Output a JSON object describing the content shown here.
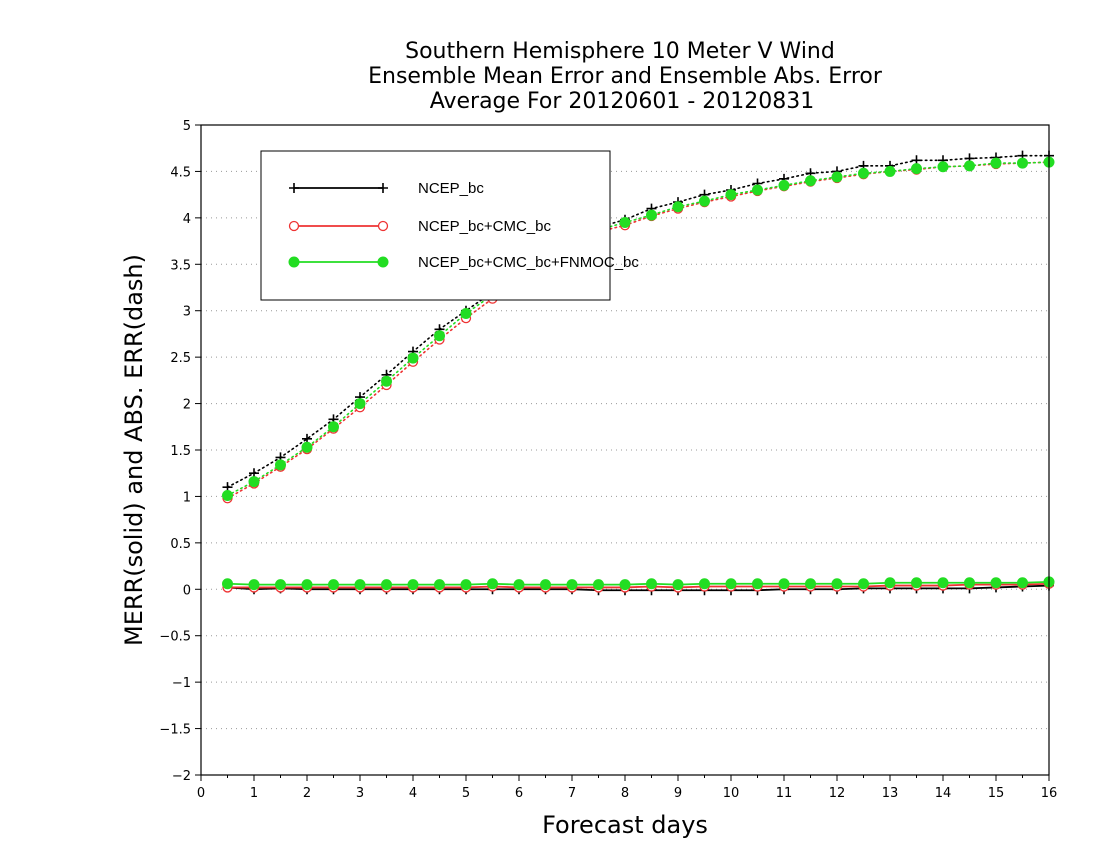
{
  "chart_data": {
    "type": "line",
    "title": "Southern Hemisphere 10 Meter V Wind",
    "subtitle": "Ensemble Mean Error and Ensemble Abs. Error",
    "subtitle2": "Average For 20120601 - 20120831",
    "xlabel": "Forecast days",
    "ylabel": "MERR(solid) and ABS. ERR(dash)",
    "xlim": [
      0,
      16
    ],
    "ylim": [
      -2,
      5
    ],
    "xticks": [
      "0",
      "1",
      "2",
      "3",
      "4",
      "5",
      "6",
      "7",
      "8",
      "9",
      "10",
      "11",
      "12",
      "13",
      "14",
      "15",
      "16"
    ],
    "yticks": [
      "−2",
      "−1.5",
      "−1",
      "−0.5",
      "0",
      "0.5",
      "1",
      "1.5",
      "2",
      "2.5",
      "3",
      "3.5",
      "4",
      "4.5",
      "5"
    ],
    "ytick_values": [
      -2,
      -1.5,
      -1,
      -0.5,
      0,
      0.5,
      1,
      1.5,
      2,
      2.5,
      3,
      3.5,
      4,
      4.5,
      5
    ],
    "grid": "horizontal-dotted",
    "legend_position": "top-left",
    "x": [
      0.5,
      1,
      1.5,
      2,
      2.5,
      3,
      3.5,
      4,
      4.5,
      5,
      5.5,
      6,
      6.5,
      7,
      7.5,
      8,
      8.5,
      9,
      9.5,
      10,
      10.5,
      11,
      11.5,
      12,
      12.5,
      13,
      13.5,
      14,
      14.5,
      15,
      15.5,
      16
    ],
    "series": [
      {
        "name": "NCEP_bc",
        "color": "#000000",
        "marker": "plus",
        "abs_err": [
          1.1,
          1.25,
          1.42,
          1.62,
          1.83,
          2.07,
          2.31,
          2.56,
          2.8,
          3.0,
          3.2,
          3.4,
          3.6,
          3.78,
          3.9,
          3.98,
          4.1,
          4.17,
          4.25,
          4.3,
          4.37,
          4.42,
          4.48,
          4.5,
          4.56,
          4.56,
          4.62,
          4.62,
          4.64,
          4.65,
          4.67,
          4.67
        ],
        "mean_err": [
          0.02,
          0.0,
          0.01,
          0.0,
          0.0,
          0.0,
          0.0,
          0.0,
          0.0,
          0.0,
          0.0,
          0.0,
          0.0,
          0.0,
          -0.01,
          -0.01,
          -0.01,
          -0.01,
          -0.01,
          -0.01,
          -0.01,
          0.0,
          0.0,
          0.0,
          0.01,
          0.01,
          0.01,
          0.01,
          0.01,
          0.02,
          0.03,
          0.04
        ]
      },
      {
        "name": "NCEP_bc+CMC_bc",
        "color": "#ee3333",
        "marker": "open-circle",
        "abs_err": [
          0.98,
          1.14,
          1.32,
          1.51,
          1.73,
          1.96,
          2.2,
          2.45,
          2.69,
          2.92,
          3.13,
          3.33,
          3.53,
          3.7,
          3.85,
          3.92,
          4.02,
          4.1,
          4.17,
          4.23,
          4.29,
          4.34,
          4.39,
          4.43,
          4.47,
          4.5,
          4.52,
          4.55,
          4.56,
          4.58,
          4.59,
          4.6
        ],
        "mean_err": [
          0.02,
          0.02,
          0.02,
          0.02,
          0.02,
          0.02,
          0.02,
          0.02,
          0.02,
          0.02,
          0.03,
          0.02,
          0.02,
          0.02,
          0.02,
          0.02,
          0.03,
          0.02,
          0.03,
          0.03,
          0.03,
          0.03,
          0.03,
          0.03,
          0.03,
          0.04,
          0.04,
          0.04,
          0.05,
          0.05,
          0.05,
          0.06
        ]
      },
      {
        "name": "NCEP_bc+CMC_bc+FNMOC_bc",
        "color": "#22dd22",
        "marker": "filled-circle",
        "abs_err": [
          1.01,
          1.16,
          1.34,
          1.53,
          1.75,
          2.0,
          2.24,
          2.49,
          2.73,
          2.97,
          3.17,
          3.37,
          3.56,
          3.73,
          3.87,
          3.95,
          4.03,
          4.12,
          4.18,
          4.25,
          4.3,
          4.35,
          4.4,
          4.44,
          4.48,
          4.5,
          4.53,
          4.55,
          4.56,
          4.59,
          4.59,
          4.6
        ],
        "mean_err": [
          0.06,
          0.05,
          0.05,
          0.05,
          0.05,
          0.05,
          0.05,
          0.05,
          0.05,
          0.05,
          0.06,
          0.05,
          0.05,
          0.05,
          0.05,
          0.05,
          0.06,
          0.05,
          0.06,
          0.06,
          0.06,
          0.06,
          0.06,
          0.06,
          0.06,
          0.07,
          0.07,
          0.07,
          0.07,
          0.07,
          0.07,
          0.08
        ]
      }
    ]
  }
}
